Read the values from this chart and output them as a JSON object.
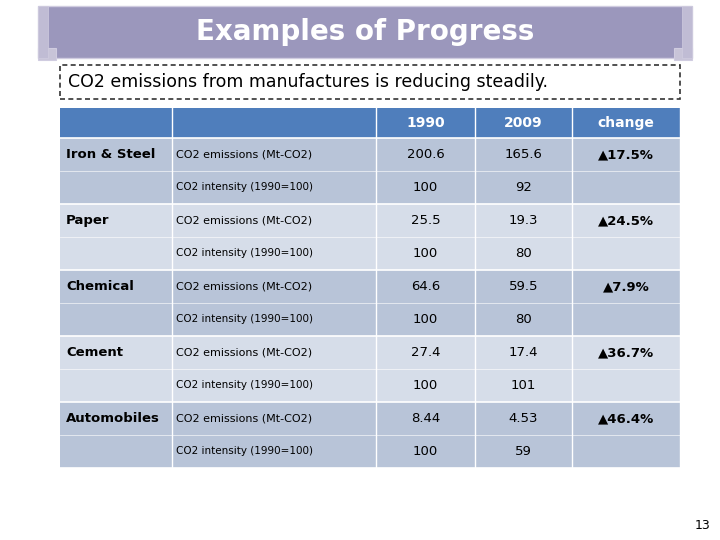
{
  "title": "Examples of Progress",
  "subtitle": "CO2 emissions from manufactures is reducing steadily.",
  "header_bg": "#4f7ebc",
  "header_text_color": "#ffffff",
  "row_bg_odd": "#b8c4d8",
  "row_bg_even": "#d6dde9",
  "banner_bg": "#9b97bc",
  "banner_edge": "#d0cce0",
  "page_num": "13",
  "rows": [
    {
      "sector": "Iron & Steel",
      "row1_label": "CO2 emissions (Mt-CO2)",
      "row1_1990": "200.6",
      "row1_2009": "165.6",
      "row1_change": "▲17.5%",
      "row2_label": "CO2 intensity (1990=100)",
      "row2_1990": "100",
      "row2_2009": "92",
      "row2_change": ""
    },
    {
      "sector": "Paper",
      "row1_label": "CO2 emissions (Mt-CO2)",
      "row1_1990": "25.5",
      "row1_2009": "19.3",
      "row1_change": "▲24.5%",
      "row2_label": "CO2 intensity (1990=100)",
      "row2_1990": "100",
      "row2_2009": "80",
      "row2_change": ""
    },
    {
      "sector": "Chemical",
      "row1_label": "CO2 emissions (Mt-CO2)",
      "row1_1990": "64.6",
      "row1_2009": "59.5",
      "row1_change": "▲7.9%",
      "row2_label": "CO2 intensity (1990=100)",
      "row2_1990": "100",
      "row2_2009": "80",
      "row2_change": ""
    },
    {
      "sector": "Cement",
      "row1_label": "CO2 emissions (Mt-CO2)",
      "row1_1990": "27.4",
      "row1_2009": "17.4",
      "row1_change": "▲36.7%",
      "row2_label": "CO2 intensity (1990=100)",
      "row2_1990": "100",
      "row2_2009": "101",
      "row2_change": ""
    },
    {
      "sector": "Automobiles",
      "row1_label": "CO2 emissions (Mt-CO2)",
      "row1_1990": "8.44",
      "row1_2009": "4.53",
      "row1_change": "▲46.4%",
      "row2_label": "CO2 intensity (1990=100)",
      "row2_1990": "100",
      "row2_2009": "59",
      "row2_change": ""
    }
  ]
}
